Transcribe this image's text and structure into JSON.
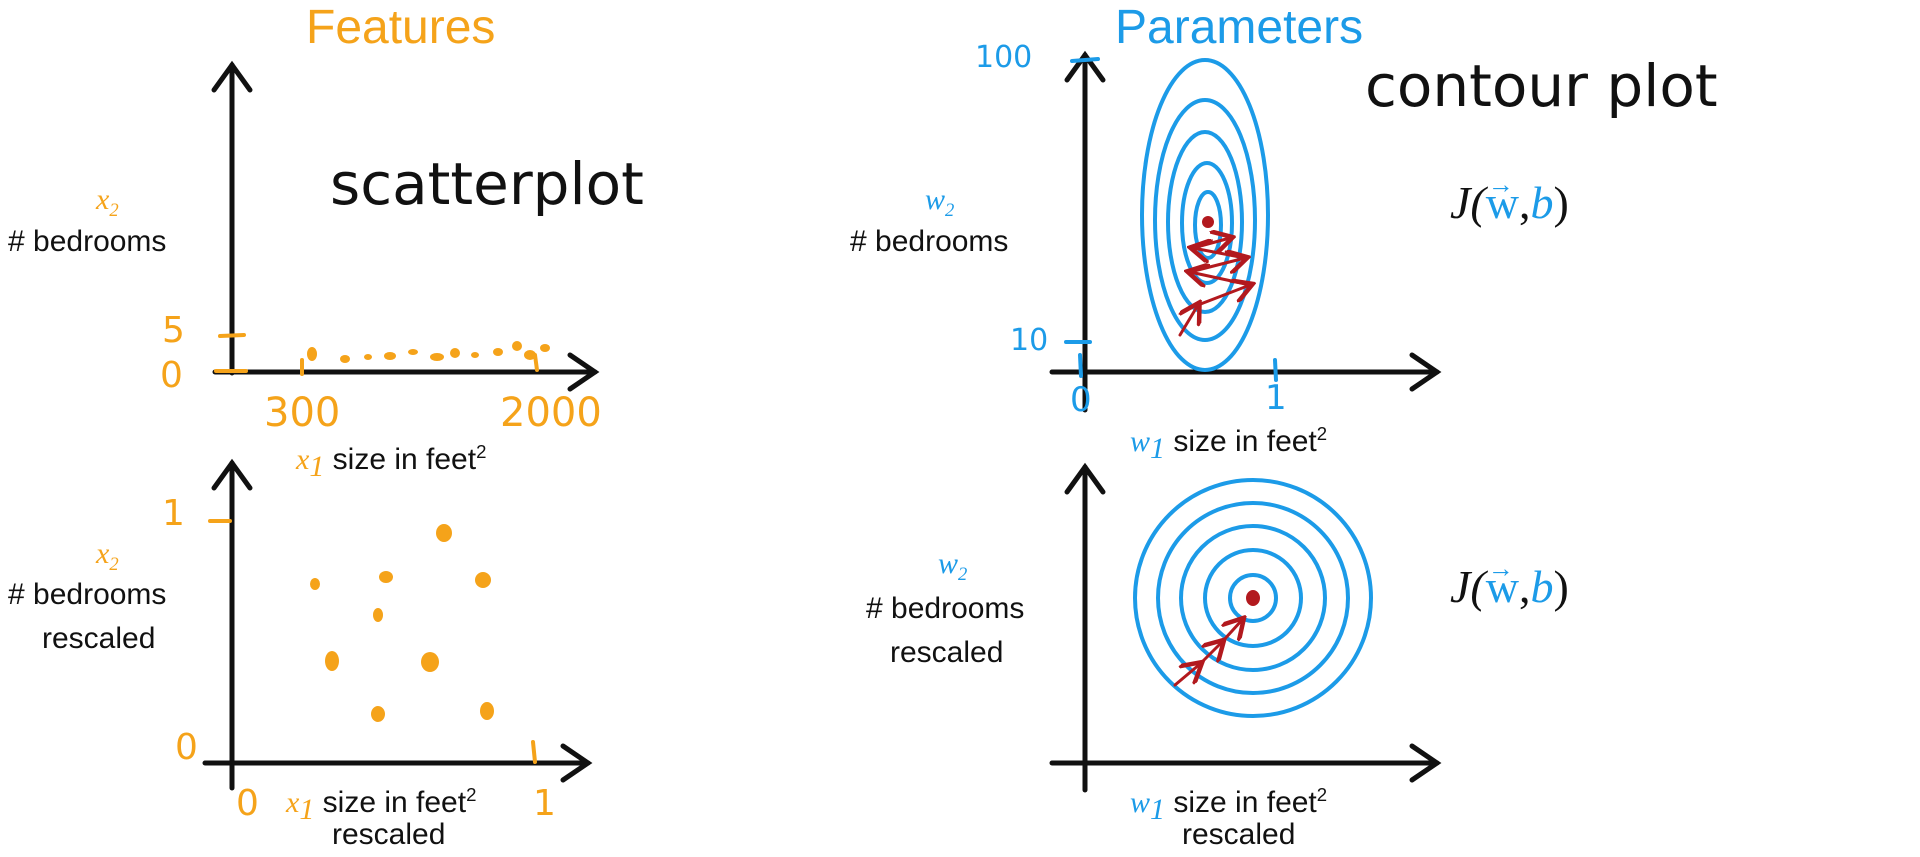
{
  "colors": {
    "features": "#f5a31a",
    "parameters": "#1c9be8",
    "ink": "#111111",
    "arrow": "#b2191e"
  },
  "features": {
    "title": "Features",
    "top": {
      "y_var": "x",
      "y_sub": "2",
      "y_label": "# bedrooms",
      "x_var": "x",
      "x_sub": "1",
      "x_label": "size in feet",
      "x_sup": "2",
      "annotation": "scatterplot",
      "y_ticks": [
        "5",
        "0"
      ],
      "x_ticks": [
        "300",
        "2000"
      ]
    },
    "bottom": {
      "y_var": "x",
      "y_sub": "2",
      "y_label_1": "# bedrooms",
      "y_label_2": "rescaled",
      "x_var": "x",
      "x_sub": "1",
      "x_label_1": "size in feet",
      "x_sup": "2",
      "x_label_2": "rescaled",
      "y_ticks": [
        "1",
        "0"
      ],
      "x_ticks": [
        "0",
        "1"
      ]
    }
  },
  "parameters": {
    "title": "Parameters",
    "top": {
      "y_var": "w",
      "y_sub": "2",
      "y_label": "# bedrooms",
      "x_var": "w",
      "x_sub": "1",
      "x_label": "size in feet",
      "x_sup": "2",
      "annotation": "contour plot",
      "y_ticks": [
        "100",
        "10"
      ],
      "x_ticks": [
        "0",
        "1"
      ],
      "cost": {
        "J": "J(",
        "w": "w",
        "comma": ",",
        "b": "b",
        "close": ")"
      }
    },
    "bottom": {
      "y_var": "w",
      "y_sub": "2",
      "y_label_1": "# bedrooms",
      "y_label_2": "rescaled",
      "x_var": "w",
      "x_sub": "1",
      "x_label_1": "size in feet",
      "x_sup": "2",
      "x_label_2": "rescaled",
      "cost": {
        "J": "J(",
        "w": "w",
        "comma": ",",
        "b": "b",
        "close": ")"
      }
    }
  }
}
